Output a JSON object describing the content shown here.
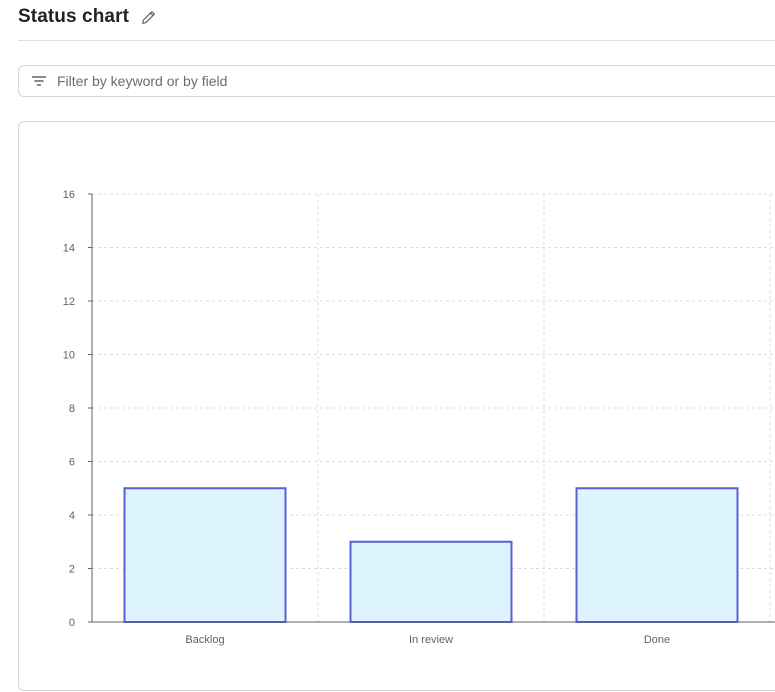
{
  "header": {
    "title": "Status chart",
    "edit_icon": "pencil-icon"
  },
  "filter": {
    "icon": "filter-icon",
    "placeholder": "Filter by keyword or by field",
    "value": ""
  },
  "colors": {
    "bar_fill": "#ddf4ff",
    "bar_stroke": "#5a5fd6",
    "grid": "#d8dee4",
    "axis": "#59636e"
  },
  "chart_data": {
    "type": "bar",
    "categories": [
      "Backlog",
      "In review",
      "Done"
    ],
    "values": [
      5,
      3,
      5
    ],
    "title": "",
    "xlabel": "",
    "ylabel": "",
    "ylim": [
      0,
      16
    ],
    "yticks": [
      0,
      2,
      4,
      6,
      8,
      10,
      12,
      14,
      16
    ],
    "grid": true,
    "legend": "none"
  }
}
